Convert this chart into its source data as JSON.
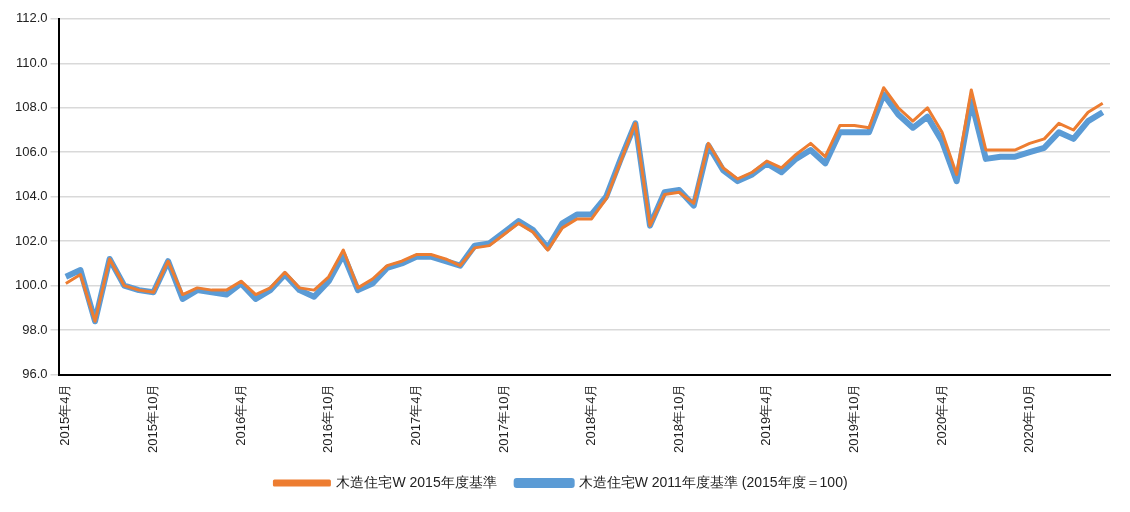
{
  "chart_data": {
    "type": "line",
    "categories": [
      "2015年4月",
      null,
      null,
      null,
      null,
      null,
      "2015年10月",
      null,
      null,
      null,
      null,
      null,
      "2016年4月",
      null,
      null,
      null,
      null,
      null,
      "2016年10月",
      null,
      null,
      null,
      null,
      null,
      "2017年4月",
      null,
      null,
      null,
      null,
      null,
      "2017年10月",
      null,
      null,
      null,
      null,
      null,
      "2018年4月",
      null,
      null,
      null,
      null,
      null,
      "2018年10月",
      null,
      null,
      null,
      null,
      null,
      "2019年4月",
      null,
      null,
      null,
      null,
      null,
      "2019年10月",
      null,
      null,
      null,
      null,
      null,
      "2020年4月",
      null,
      null,
      null,
      null,
      null,
      "2020年10月",
      null,
      null,
      null,
      null,
      null
    ],
    "series": [
      {
        "name": "木造住宅W 2011年度基準 (2015年度＝100)",
        "color": "#5b9bd5",
        "values": [
          100.4,
          100.7,
          98.4,
          101.2,
          100.0,
          99.8,
          99.7,
          101.1,
          99.4,
          99.8,
          99.7,
          99.6,
          100.1,
          99.4,
          99.8,
          100.5,
          99.8,
          99.5,
          100.2,
          101.4,
          99.8,
          100.1,
          100.8,
          101.0,
          101.3,
          101.3,
          101.1,
          100.9,
          101.8,
          101.9,
          102.4,
          102.9,
          102.5,
          101.7,
          102.8,
          103.2,
          103.2,
          104.0,
          105.7,
          107.3,
          102.7,
          104.2,
          104.3,
          103.6,
          106.3,
          105.2,
          104.7,
          105.0,
          105.5,
          105.1,
          105.7,
          106.1,
          105.5,
          106.9,
          106.9,
          106.9,
          108.6,
          107.7,
          107.1,
          107.6,
          106.5,
          104.7,
          108.3,
          105.7,
          105.8,
          105.8,
          106.0,
          106.2,
          106.9,
          106.6,
          107.4,
          107.8
        ]
      },
      {
        "name": "木造住宅W 2015年度基準",
        "color": "#ed7d31",
        "values": [
          100.1,
          100.5,
          98.4,
          101.2,
          100.0,
          99.8,
          99.7,
          101.1,
          99.6,
          99.9,
          99.8,
          99.8,
          100.2,
          99.6,
          99.9,
          100.6,
          99.9,
          99.8,
          100.4,
          101.6,
          99.9,
          100.3,
          100.9,
          101.1,
          101.4,
          101.4,
          101.2,
          100.9,
          101.7,
          101.8,
          102.3,
          102.8,
          102.4,
          101.6,
          102.6,
          103.0,
          103.0,
          103.9,
          105.6,
          107.3,
          102.7,
          104.1,
          104.2,
          103.7,
          106.4,
          105.3,
          104.8,
          105.1,
          105.6,
          105.3,
          105.9,
          106.4,
          105.8,
          107.2,
          107.2,
          107.1,
          108.9,
          108.0,
          107.4,
          108.0,
          106.9,
          105.0,
          108.8,
          106.1,
          106.1,
          106.1,
          106.4,
          106.6,
          107.3,
          107.0,
          107.8,
          108.2
        ]
      }
    ],
    "ylim": [
      96,
      112
    ],
    "yticks": [
      {
        "value": 96,
        "label": "96.0"
      },
      {
        "value": 98,
        "label": "98.0"
      },
      {
        "value": 100,
        "label": "100.0"
      },
      {
        "value": 102,
        "label": "102.0"
      },
      {
        "value": 104,
        "label": "104.0"
      },
      {
        "value": 106,
        "label": "106.0"
      },
      {
        "value": 108,
        "label": "108.0"
      },
      {
        "value": 110,
        "label": "110.0"
      },
      {
        "value": 112,
        "label": "112.0"
      }
    ],
    "grid": "y",
    "legend": "bottom",
    "marker": "none",
    "line_style": "solid"
  }
}
